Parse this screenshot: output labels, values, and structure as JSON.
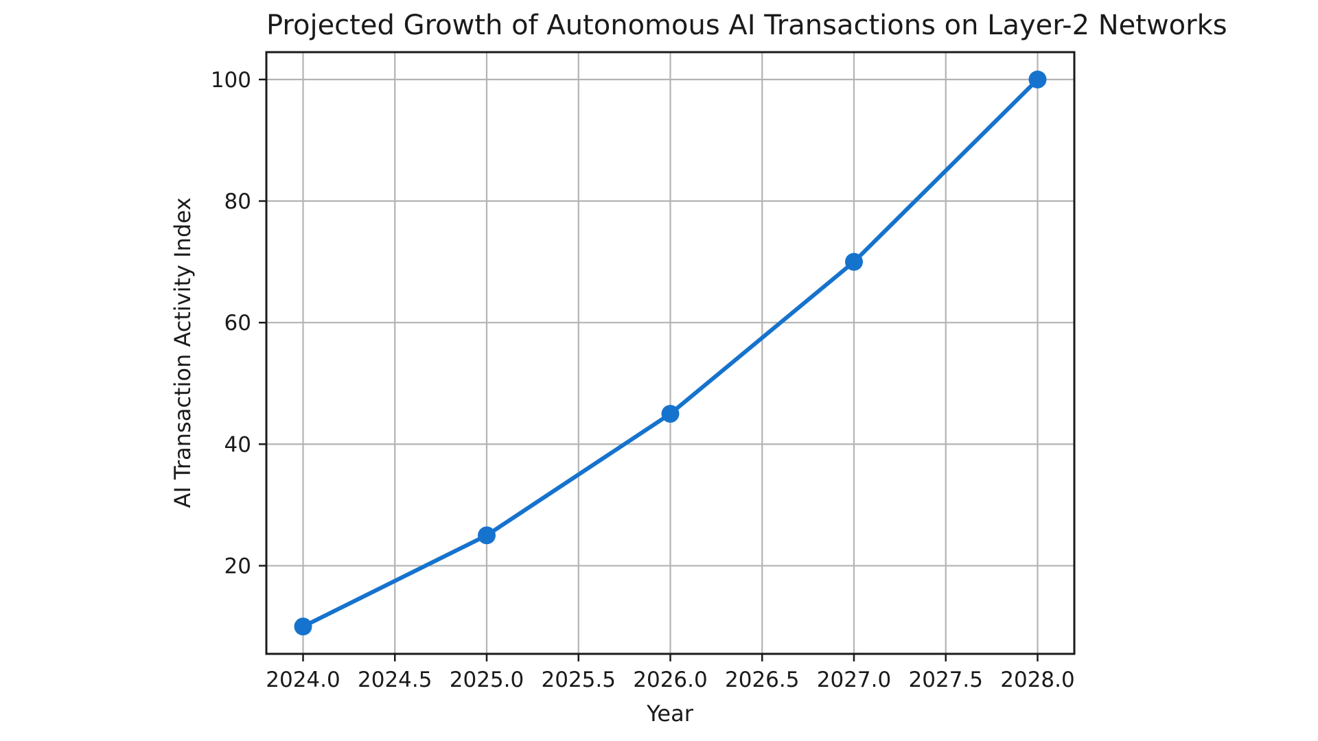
{
  "figure": {
    "background": "#ffffff"
  },
  "chart_data": {
    "type": "line",
    "title": "Projected Growth of Autonomous AI Transactions on Layer-2 Networks",
    "xlabel": "Year",
    "ylabel": "AI Transaction Activity Index",
    "x": [
      2024,
      2025,
      2026,
      2027,
      2028
    ],
    "series": [
      {
        "name": "AI Transaction Activity Index",
        "values": [
          10,
          25,
          45,
          70,
          100
        ]
      }
    ],
    "xlim": [
      2023.8,
      2028.2
    ],
    "ylim": [
      5.5,
      104.5
    ],
    "xticks": {
      "values": [
        2024.0,
        2024.5,
        2025.0,
        2025.5,
        2026.0,
        2026.5,
        2027.0,
        2027.5,
        2028.0
      ],
      "labels": [
        "2024.0",
        "2024.5",
        "2025.0",
        "2025.5",
        "2026.0",
        "2026.5",
        "2027.0",
        "2027.5",
        "2028.0"
      ]
    },
    "yticks": {
      "values": [
        20,
        40,
        60,
        80,
        100
      ],
      "labels": [
        "20",
        "40",
        "60",
        "80",
        "100"
      ]
    },
    "grid": true,
    "legend": "none",
    "line_color": "#1673cd",
    "grid_color": "#b3b3b3",
    "spine_color": "#1a1a1a",
    "text_color": "#1a1a1a",
    "marker": "circle"
  }
}
